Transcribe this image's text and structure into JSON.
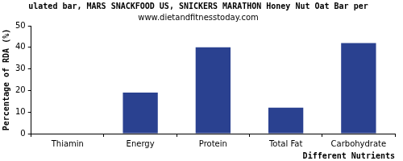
{
  "chart_data": {
    "type": "bar",
    "title": "ulated bar, MARS SNACKFOOD US, SNICKERS MARATHON Honey Nut Oat Bar per",
    "subtitle": "www.dietandfitnesstoday.com",
    "x_label": "Different Nutrients",
    "y_label": "Percentage of RDA (%)",
    "categories": [
      "Thiamin",
      "Energy",
      "Protein",
      "Total Fat",
      "Carbohydrate"
    ],
    "values": [
      0,
      19,
      40,
      12,
      42
    ],
    "color": "#2a4190",
    "ylim": [
      0,
      50
    ],
    "yticks": [
      0,
      10,
      20,
      30,
      40,
      50
    ],
    "grid": false
  }
}
